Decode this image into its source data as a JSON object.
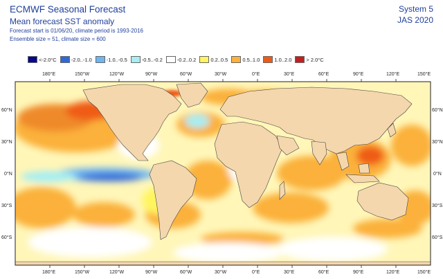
{
  "header": {
    "title": "ECMWF Seasonal Forecast",
    "subtitle": "Mean forecast SST anomaly",
    "line3": "Forecast start is 01/06/20, climate period is 1993-2016",
    "line4": "Ensemble size = 51, climate size = 600",
    "system": "System 5",
    "season": "JAS 2020"
  },
  "legend": [
    {
      "label": "<-2.0°C",
      "color": "#06088e"
    },
    {
      "label": "-2.0..-1.0",
      "color": "#2f69d8"
    },
    {
      "label": "-1.0..-0.5",
      "color": "#6fb6f0"
    },
    {
      "label": "-0.5..-0.2",
      "color": "#a6eef3"
    },
    {
      "label": "-0.2..0.2",
      "color": "#ffffff"
    },
    {
      "label": "0.2..0.5",
      "color": "#fff55e"
    },
    {
      "label": "0.5..1.0",
      "color": "#fbb13a"
    },
    {
      "label": "1.0..2.0",
      "color": "#ef5b16"
    },
    {
      "label": "> 2.0°C",
      "color": "#c51e20"
    }
  ],
  "axes": {
    "lon_labels": [
      "180°E",
      "150°W",
      "120°W",
      "90°W",
      "60°W",
      "30°W",
      "0°E",
      "30°E",
      "60°E",
      "90°E",
      "120°E",
      "150°E"
    ],
    "lat_labels": [
      "60°N",
      "30°N",
      "0°N",
      "30°S",
      "60°S"
    ]
  },
  "colors": {
    "land": "#f5d7ad",
    "coast": "#444444",
    "frame": "#222222"
  }
}
